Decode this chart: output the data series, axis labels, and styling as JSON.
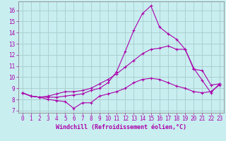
{
  "xlabel": "Windchill (Refroidissement éolien,°C)",
  "bg_color": "#c8eef0",
  "line_color": "#aa00aa",
  "grid_color": "#aacccc",
  "spine_color": "#888888",
  "xlim": [
    -0.5,
    23.5
  ],
  "ylim": [
    6.8,
    16.8
  ],
  "xticks": [
    0,
    1,
    2,
    3,
    4,
    5,
    6,
    7,
    8,
    9,
    10,
    11,
    12,
    13,
    14,
    15,
    16,
    17,
    18,
    19,
    20,
    21,
    22,
    23
  ],
  "yticks": [
    7,
    8,
    9,
    10,
    11,
    12,
    13,
    14,
    15,
    16
  ],
  "line1_x": [
    0,
    1,
    2,
    3,
    4,
    5,
    6,
    7,
    8,
    9,
    10,
    11,
    12,
    13,
    14,
    15,
    16,
    17,
    18,
    19,
    20,
    21,
    22,
    23
  ],
  "line1_y": [
    8.6,
    8.3,
    8.2,
    8.0,
    7.9,
    7.8,
    7.2,
    7.7,
    7.7,
    8.3,
    8.5,
    8.7,
    9.0,
    9.5,
    9.8,
    9.9,
    9.8,
    9.5,
    9.2,
    9.0,
    8.7,
    8.6,
    8.7,
    9.3
  ],
  "line2_x": [
    0,
    1,
    2,
    3,
    4,
    5,
    6,
    7,
    8,
    9,
    10,
    11,
    12,
    13,
    14,
    15,
    16,
    17,
    18,
    19,
    20,
    21,
    22,
    23
  ],
  "line2_y": [
    8.6,
    8.3,
    8.2,
    8.3,
    8.5,
    8.7,
    8.7,
    8.8,
    9.0,
    9.4,
    9.8,
    10.3,
    10.9,
    11.5,
    12.1,
    12.5,
    12.6,
    12.8,
    12.5,
    12.5,
    10.7,
    10.6,
    9.3,
    9.4
  ],
  "line3_x": [
    0,
    1,
    2,
    3,
    4,
    5,
    6,
    7,
    8,
    9,
    10,
    11,
    12,
    13,
    14,
    15,
    16,
    17,
    18,
    19,
    20,
    21,
    22,
    23
  ],
  "line3_y": [
    8.6,
    8.3,
    8.2,
    8.2,
    8.2,
    8.3,
    8.4,
    8.5,
    8.8,
    9.0,
    9.5,
    10.5,
    12.3,
    14.2,
    15.7,
    16.4,
    14.5,
    13.9,
    13.4,
    12.5,
    10.8,
    9.7,
    8.6,
    9.4
  ],
  "tick_fontsize": 5.5,
  "xlabel_fontsize": 6.0
}
